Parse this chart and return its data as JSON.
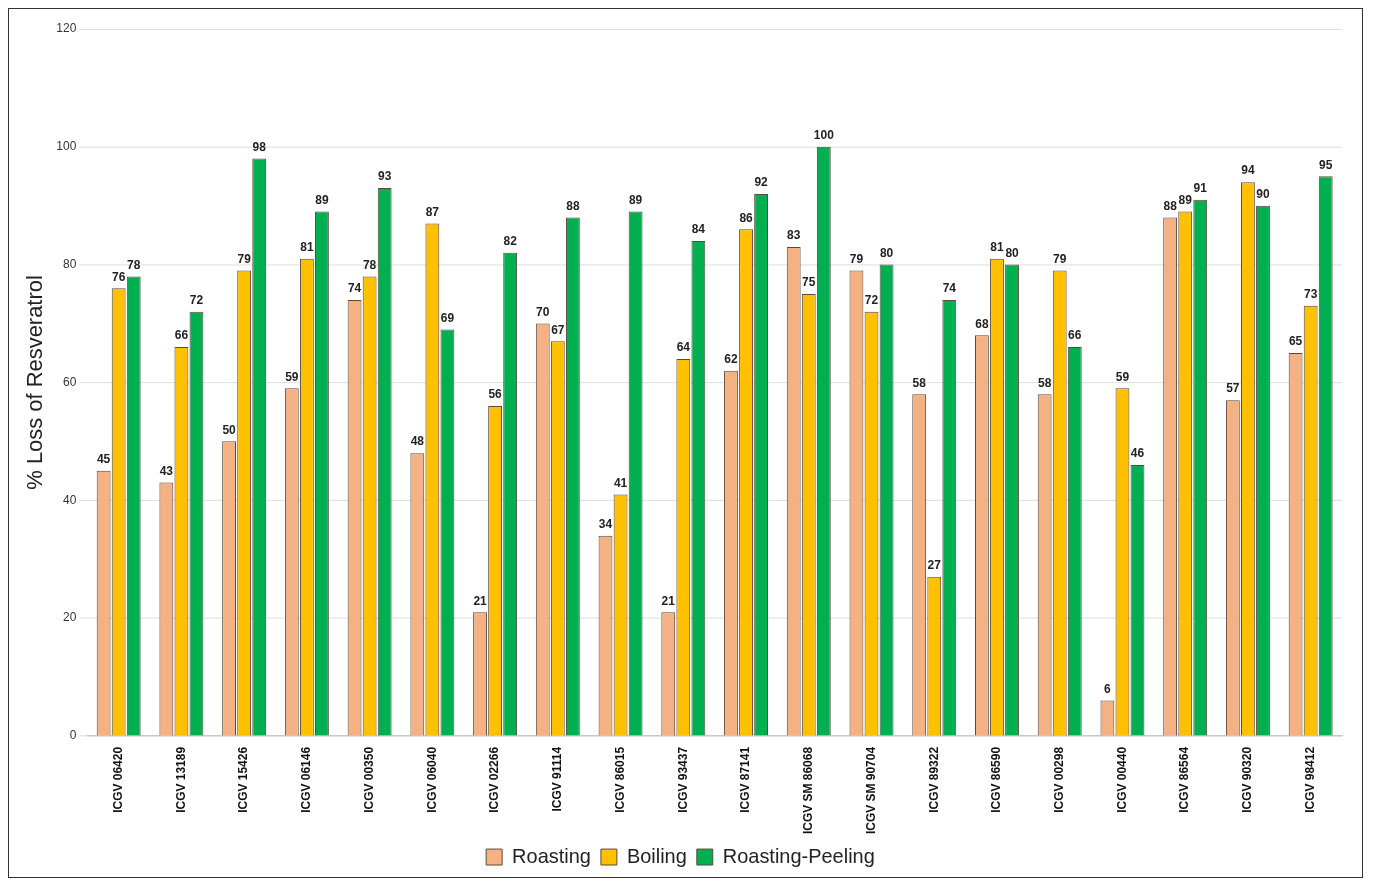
{
  "chart_data": {
    "type": "bar",
    "ylabel": "% Loss of Resveratrol",
    "categories": [
      "ICGV 06420",
      "ICGV 13189",
      "ICGV 15426",
      "ICGV 06146",
      "ICGV 00350",
      "ICGV 06040",
      "ICGV 02266",
      "ICGV 91114",
      "ICGV 86015",
      "ICGV 93437",
      "ICGV 87141",
      "ICGV SM 86068",
      "ICGV SM 90704",
      "ICGV 89322",
      "ICGV 86590",
      "ICGV 00298",
      "ICGV 00440",
      "ICGV 86564",
      "ICGV 90320",
      "ICGV 98412"
    ],
    "series": [
      {
        "name": "Roasting",
        "color": "#f4b183",
        "values": [
          45,
          43,
          50,
          59,
          74,
          48,
          21,
          70,
          34,
          21,
          62,
          83,
          79,
          58,
          68,
          58,
          6,
          88,
          57,
          65
        ]
      },
      {
        "name": "Boiling",
        "color": "#ffc000",
        "values": [
          76,
          66,
          79,
          81,
          78,
          87,
          56,
          67,
          41,
          64,
          86,
          75,
          72,
          27,
          81,
          79,
          59,
          89,
          94,
          73
        ]
      },
      {
        "name": "Roasting-Peeling",
        "color": "#00b050",
        "values": [
          78,
          72,
          98,
          89,
          93,
          69,
          82,
          88,
          89,
          84,
          92,
          100,
          80,
          74,
          80,
          66,
          46,
          91,
          90,
          95
        ]
      }
    ],
    "ylim": [
      0,
      120
    ],
    "yticks": [
      0,
      20,
      40,
      60,
      80,
      100,
      120
    ],
    "grid": "y",
    "legend": "bottom",
    "data_labels": true
  }
}
